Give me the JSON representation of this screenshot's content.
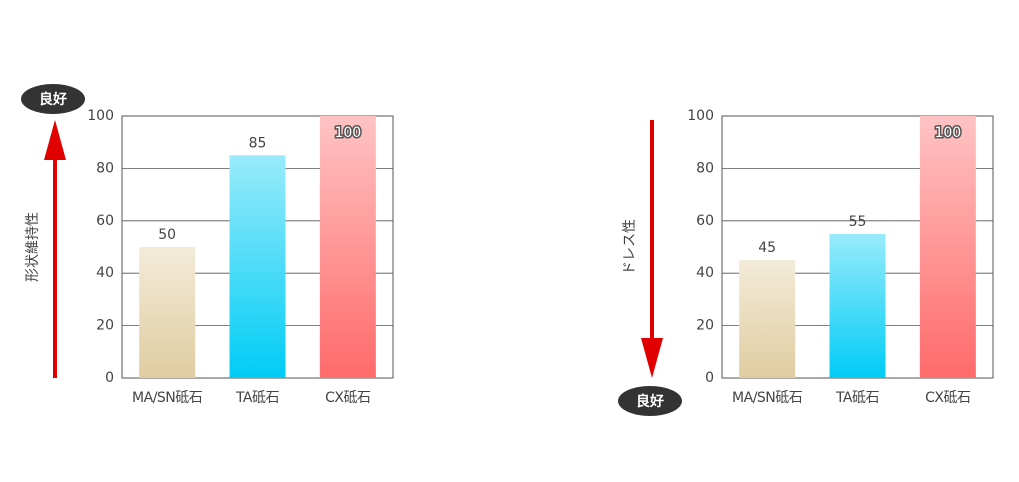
{
  "chart_data": [
    {
      "type": "bar",
      "y_label": "形状維持性",
      "annotation": "良好",
      "better": "up",
      "categories": [
        "MA/SN砥石",
        "TA砥石",
        "CX砥石"
      ],
      "values": [
        50,
        85,
        100
      ],
      "colors": [
        "#e0cca0",
        "#00ccf5",
        "#ff6a6a"
      ],
      "ylim": [
        0,
        100
      ],
      "yticks": [
        0,
        20,
        40,
        60,
        80,
        100
      ],
      "grid": true
    },
    {
      "type": "bar",
      "y_label": "ドレス性",
      "annotation": "良好",
      "better": "down",
      "categories": [
        "MA/SN砥石",
        "TA砥石",
        "CX砥石"
      ],
      "values": [
        45,
        55,
        100
      ],
      "colors": [
        "#e0cca0",
        "#00ccf5",
        "#ff6a6a"
      ],
      "ylim": [
        0,
        100
      ],
      "yticks": [
        0,
        20,
        40,
        60,
        80,
        100
      ],
      "grid": true
    }
  ]
}
